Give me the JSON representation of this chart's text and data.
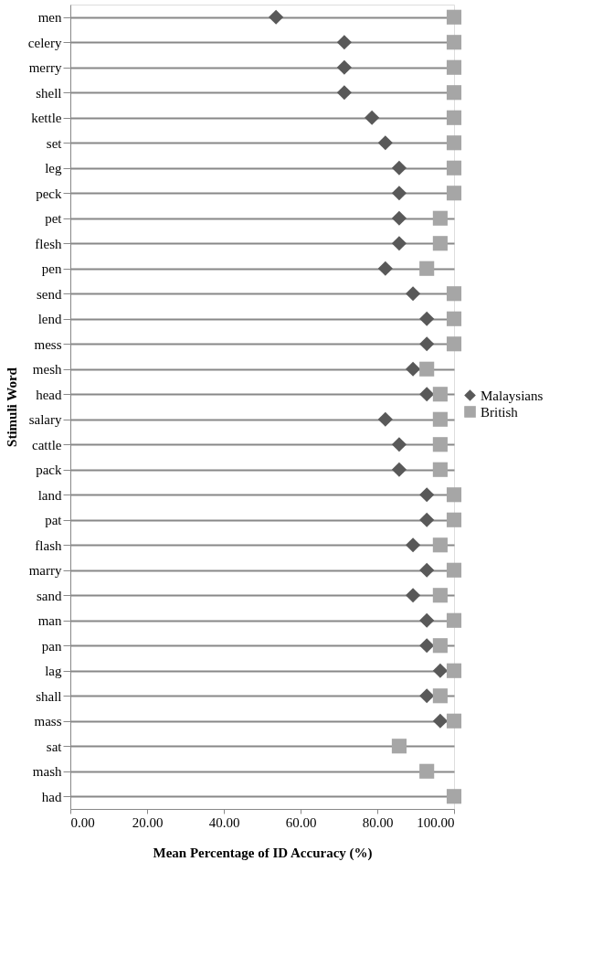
{
  "chart_data": {
    "type": "scatter",
    "orientation": "horizontal",
    "xlabel": "Mean Percentage of ID Accuracy (%)",
    "ylabel": "Stimuli Word",
    "categories": [
      "men",
      "celery",
      "merry",
      "shell",
      "kettle",
      "set",
      "leg",
      "peck",
      "pet",
      "flesh",
      "pen",
      "send",
      "lend",
      "mess",
      "mesh",
      "head",
      "salary",
      "cattle",
      "pack",
      "land",
      "pat",
      "flash",
      "marry",
      "sand",
      "man",
      "pan",
      "lag",
      "shall",
      "mass",
      "sat",
      "mash",
      "had"
    ],
    "series": [
      {
        "name": "Malaysians",
        "color": "#595959",
        "marker": "diamond",
        "values": [
          53.6,
          71.4,
          71.4,
          71.4,
          78.6,
          82.1,
          85.7,
          85.7,
          85.7,
          85.7,
          82.1,
          89.3,
          92.9,
          92.9,
          89.3,
          92.9,
          82.1,
          85.7,
          85.7,
          92.9,
          92.9,
          89.3,
          92.9,
          89.3,
          92.9,
          92.9,
          96.4,
          92.9,
          96.4,
          null,
          null,
          null
        ]
      },
      {
        "name": "British",
        "color": "#a6a6a6",
        "marker": "square",
        "values": [
          100,
          100,
          100,
          100,
          100,
          100,
          100,
          100,
          96.4,
          96.4,
          92.9,
          100,
          100,
          100,
          92.9,
          96.4,
          96.4,
          96.4,
          96.4,
          100,
          100,
          96.4,
          100,
          96.4,
          100,
          96.4,
          100,
          96.4,
          100,
          85.7,
          92.9,
          100
        ]
      }
    ],
    "xlim": [
      0,
      100
    ],
    "xticks": [
      {
        "value": 0,
        "label": "0.00"
      },
      {
        "value": 20,
        "label": "20.00"
      },
      {
        "value": 40,
        "label": "40.00"
      },
      {
        "value": 60,
        "label": "60.00"
      },
      {
        "value": 80,
        "label": "80.00"
      },
      {
        "value": 100,
        "label": "100.00"
      }
    ],
    "grid": "y",
    "legend": "right"
  }
}
